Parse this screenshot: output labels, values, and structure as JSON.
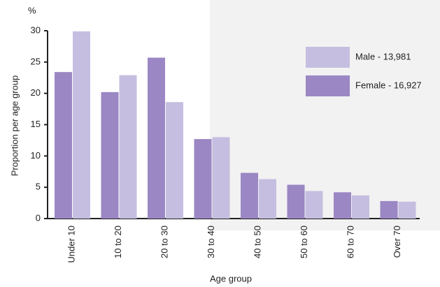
{
  "chart_data": {
    "type": "bar",
    "y_unit": "%",
    "y_label": "Proportion per age group",
    "x_label": "Age group",
    "categories": [
      "Under 10",
      "10 to 20",
      "20 to 30",
      "30 to 40",
      "40 to 50",
      "50 to 60",
      "60 to 70",
      "Over 70"
    ],
    "series": [
      {
        "name": "Female - 16,927",
        "color": "#9b87c4",
        "values": [
          23.4,
          20.2,
          25.7,
          12.7,
          7.3,
          5.4,
          4.2,
          2.8
        ]
      },
      {
        "name": "Male - 13,981",
        "color": "#c6bee0",
        "values": [
          29.9,
          22.9,
          18.6,
          13,
          6.3,
          4.4,
          3.7,
          2.7
        ]
      }
    ],
    "ylim": [
      0,
      30
    ],
    "yticks": [
      0,
      5,
      10,
      15,
      20,
      25,
      30
    ]
  }
}
